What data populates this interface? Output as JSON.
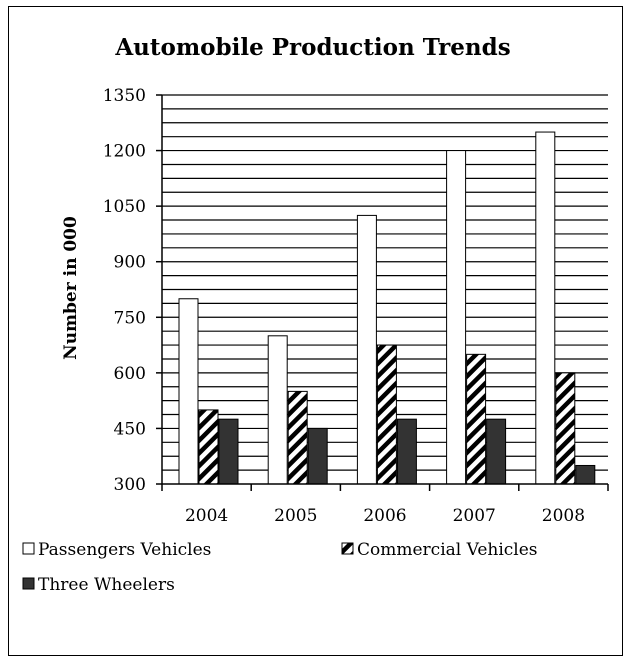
{
  "chart_data": {
    "type": "bar",
    "title": "Automobile Production Trends",
    "ylabel": "Number in 000",
    "xlabel": "",
    "categories": [
      "2004",
      "2005",
      "2006",
      "2007",
      "2008"
    ],
    "ylim": [
      300,
      1350
    ],
    "yticks": [
      300,
      450,
      600,
      750,
      900,
      1050,
      1200,
      1350
    ],
    "grid": true,
    "legend_placement": "bottom",
    "series": [
      {
        "name": "Passengers Vehicles",
        "values": [
          800,
          700,
          1025,
          1200,
          1250
        ],
        "fill": "#ffffff",
        "pattern": "none"
      },
      {
        "name": "Commercial Vehicles",
        "values": [
          500,
          550,
          675,
          650,
          600
        ],
        "fill": "#ffffff",
        "pattern": "diagonal-stripes"
      },
      {
        "name": "Three Wheelers",
        "values": [
          475,
          450,
          475,
          475,
          350
        ],
        "fill": "#333333",
        "pattern": "none"
      }
    ]
  }
}
